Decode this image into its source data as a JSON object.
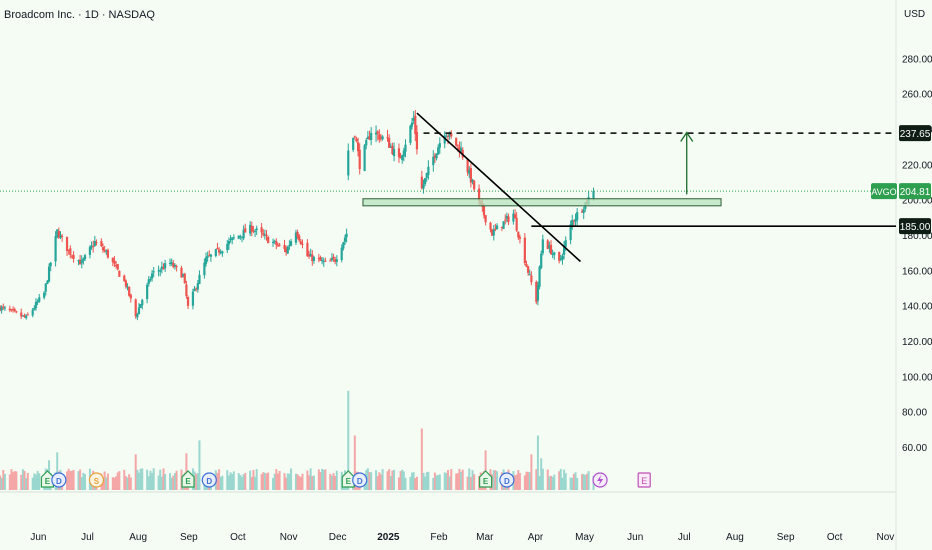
{
  "header": {
    "title": "Broadcom Inc. · 1D · NASDAQ",
    "currency": "USD"
  },
  "chart_data": {
    "type": "candlestick",
    "symbol": "AVGO",
    "interval": "1D",
    "exchange": "NASDAQ",
    "price_axis": {
      "ticks": [
        60,
        80,
        100,
        120,
        140,
        160,
        180,
        200,
        220,
        240,
        260,
        280
      ],
      "tick_labels": [
        "60.00",
        "80.00",
        "100.00",
        "120.00",
        "140.00",
        "160.00",
        "180.00",
        "200.00",
        "220.00",
        "240.00",
        "260.00",
        "280.00"
      ],
      "range": [
        47,
        296
      ]
    },
    "time_axis": {
      "labels": [
        "Jun",
        "Jul",
        "Aug",
        "Sep",
        "Oct",
        "Nov",
        "Dec",
        "2025",
        "Feb",
        "Mar",
        "Apr",
        "May",
        "Jun",
        "Jul",
        "Aug",
        "Sep",
        "Oct",
        "Nov"
      ],
      "start": "2024-05-14",
      "end": "2025-11-13"
    },
    "last_price": {
      "label": "AVGO",
      "value": 204.81,
      "value_label": "204.81",
      "color": "#2e9e4f"
    },
    "target_level": {
      "value": 237.65,
      "label": "237.65",
      "style": "dashed"
    },
    "support_level": {
      "value": 185.0,
      "label": "185.00",
      "style": "solid"
    },
    "resistance_zone": {
      "low": 196.5,
      "high": 200.5,
      "from": "2024-12-22",
      "to": "2025-07-29",
      "color": "#b7e4bd"
    },
    "trendline": {
      "start": {
        "date": "2025-01-24",
        "price": 249
      },
      "end": {
        "date": "2025-05-04",
        "price": 165
      }
    },
    "target_arrow": {
      "date": "2025-07-08",
      "from": 203,
      "to": 238
    },
    "price_anchors": [
      [
        "2024-05-14",
        139
      ],
      [
        "2024-05-30",
        133
      ],
      [
        "2024-06-10",
        147
      ],
      [
        "2024-06-18",
        182
      ],
      [
        "2024-06-25",
        171
      ],
      [
        "2024-07-03",
        164
      ],
      [
        "2024-07-11",
        176
      ],
      [
        "2024-07-18",
        170
      ],
      [
        "2024-07-30",
        152
      ],
      [
        "2024-08-05",
        134
      ],
      [
        "2024-08-15",
        158
      ],
      [
        "2024-08-26",
        164
      ],
      [
        "2024-09-03",
        157
      ],
      [
        "2024-09-06",
        139
      ],
      [
        "2024-09-17",
        166
      ],
      [
        "2024-09-26",
        172
      ],
      [
        "2024-10-04",
        178
      ],
      [
        "2024-10-15",
        184
      ],
      [
        "2024-10-24",
        178
      ],
      [
        "2024-11-05",
        171
      ],
      [
        "2024-11-11",
        183
      ],
      [
        "2024-11-18",
        168
      ],
      [
        "2024-11-29",
        164
      ],
      [
        "2024-12-05",
        166
      ],
      [
        "2024-12-12",
        181
      ],
      [
        "2024-12-13",
        228
      ],
      [
        "2024-12-17",
        238
      ],
      [
        "2024-12-20",
        220
      ],
      [
        "2024-12-27",
        239
      ],
      [
        "2025-01-06",
        233
      ],
      [
        "2025-01-13",
        222
      ],
      [
        "2025-01-22",
        246
      ],
      [
        "2025-01-27",
        206
      ],
      [
        "2025-02-03",
        224
      ],
      [
        "2025-02-10",
        239
      ],
      [
        "2025-02-20",
        228
      ],
      [
        "2025-03-03",
        198
      ],
      [
        "2025-03-11",
        181
      ],
      [
        "2025-03-24",
        192
      ],
      [
        "2025-03-31",
        166
      ],
      [
        "2025-04-07",
        143
      ],
      [
        "2025-04-11",
        178
      ],
      [
        "2025-04-21",
        164
      ],
      [
        "2025-04-29",
        188
      ],
      [
        "2025-05-07",
        198
      ],
      [
        "2025-05-12",
        204.8
      ]
    ],
    "volume_axis": {
      "range": [
        0,
        55
      ]
    },
    "volume_spikes": [
      [
        "2024-06-13",
        30
      ],
      [
        "2024-06-18",
        38
      ],
      [
        "2024-08-05",
        36
      ],
      [
        "2024-09-05",
        37
      ],
      [
        "2024-09-13",
        50
      ],
      [
        "2024-12-13",
        100
      ],
      [
        "2024-12-17",
        55
      ],
      [
        "2025-01-27",
        62
      ],
      [
        "2025-03-07",
        40
      ],
      [
        "2025-04-04",
        36
      ],
      [
        "2025-04-08",
        55
      ],
      [
        "2025-04-10",
        32
      ]
    ],
    "events": [
      {
        "type": "E",
        "date": "2024-06-12"
      },
      {
        "type": "D",
        "date": "2024-06-19"
      },
      {
        "type": "S",
        "date": "2024-07-12"
      },
      {
        "type": "E",
        "date": "2024-09-06"
      },
      {
        "type": "D",
        "date": "2024-09-19"
      },
      {
        "type": "E",
        "date": "2024-12-13"
      },
      {
        "type": "D",
        "date": "2024-12-20"
      },
      {
        "type": "E",
        "date": "2025-03-07"
      },
      {
        "type": "D",
        "date": "2025-03-20"
      },
      {
        "type": "bolt",
        "date": "2025-05-16"
      },
      {
        "type": "E",
        "date": "2025-06-12"
      }
    ],
    "colors": {
      "up": "#26a69a",
      "down": "#ef5350",
      "up_volume": "#9ad7cf",
      "down_volume": "#f5a6a6",
      "background": "#f4fcf4",
      "lines": "#000000",
      "arrow": "#1b6b2b"
    }
  }
}
